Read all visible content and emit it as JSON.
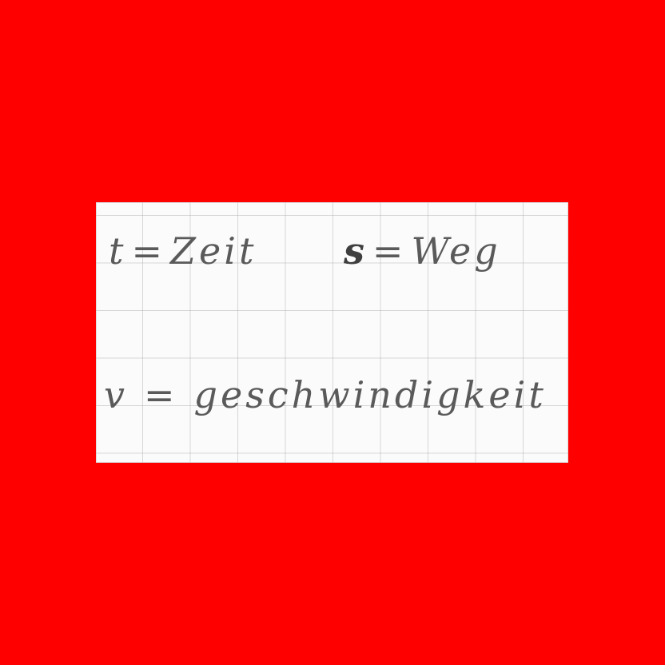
{
  "background_color": "#ff0000",
  "card_color": "#fbfbfb",
  "ink_color": "#5a5a5a",
  "definitions": [
    {
      "symbol": "t",
      "equals": "=",
      "meaning": "Zeit"
    },
    {
      "symbol": "s",
      "equals": "=",
      "meaning": "Weg"
    },
    {
      "symbol": "v",
      "equals": "=",
      "meaning": "geschwindigkeit"
    }
  ]
}
